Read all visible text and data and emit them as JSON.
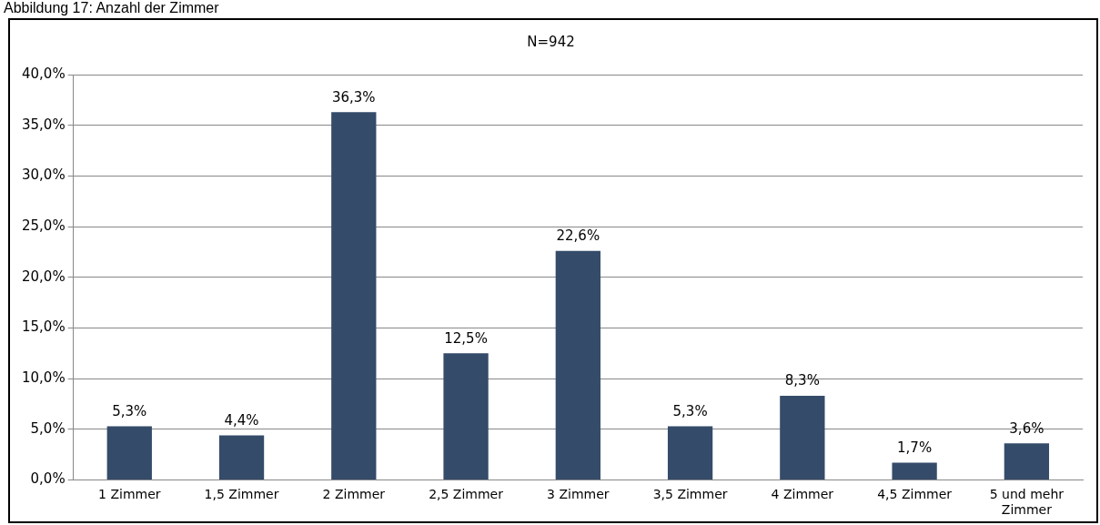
{
  "chart_data": {
    "type": "bar",
    "title": "Abbildung 17: Anzahl der Zimmer",
    "subtitle": "N=942",
    "categories": [
      "1 Zimmer",
      "1,5 Zimmer",
      "2 Zimmer",
      "2,5 Zimmer",
      "3 Zimmer",
      "3,5 Zimmer",
      "4 Zimmer",
      "4,5 Zimmer",
      "5 und mehr Zimmer"
    ],
    "values": [
      5.3,
      4.4,
      36.3,
      12.5,
      22.6,
      5.3,
      8.3,
      1.7,
      3.6
    ],
    "value_labels": [
      "5,3%",
      "4,4%",
      "36,3%",
      "12,5%",
      "22,6%",
      "5,3%",
      "8,3%",
      "1,7%",
      "3,6%"
    ],
    "color": "#354b6a",
    "ylim": [
      0,
      40
    ],
    "yticks": [
      {
        "value": 0,
        "label": "0,0%"
      },
      {
        "value": 5,
        "label": "5,0%"
      },
      {
        "value": 10,
        "label": "10,0%"
      },
      {
        "value": 15,
        "label": "15,0%"
      },
      {
        "value": 20,
        "label": "20,0%"
      },
      {
        "value": 25,
        "label": "25,0%"
      },
      {
        "value": 30,
        "label": "30,0%"
      },
      {
        "value": 35,
        "label": "35,0%"
      },
      {
        "value": 40,
        "label": "40,0%"
      }
    ],
    "grid": "y",
    "legend": false
  }
}
